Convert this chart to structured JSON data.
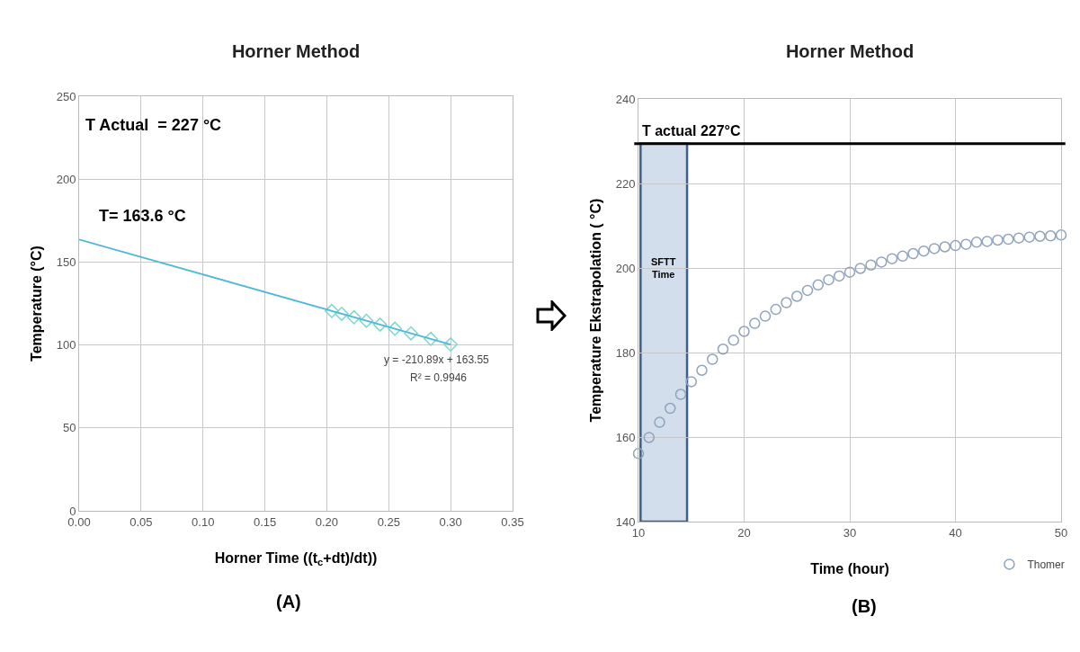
{
  "chart_data": [
    {
      "type": "scatter",
      "title": "Horner Method",
      "xlabel": "Horner Time ((t$_{c}$+dt)/dt))",
      "ylabel": "Temperature (°C)",
      "xlim": [
        0,
        0.35
      ],
      "xticks": [
        {
          "value": 0,
          "label": "0.00"
        },
        {
          "value": 0.05,
          "label": "0.05"
        },
        {
          "value": 0.1,
          "label": "0.10"
        },
        {
          "value": 0.15,
          "label": "0.15"
        },
        {
          "value": 0.2,
          "label": "0.20"
        },
        {
          "value": 0.25,
          "label": "0.25"
        },
        {
          "value": 0.3,
          "label": "0.30"
        },
        {
          "value": 0.35,
          "label": "0.35"
        }
      ],
      "ylim": [
        0,
        250
      ],
      "yticks": [
        0,
        50,
        100,
        150,
        200,
        250
      ],
      "grid": true,
      "legend": false,
      "marker": "diamond",
      "series": [
        {
          "color": "#7fd6d0",
          "x": [
            0.204,
            0.212,
            0.222,
            0.232,
            0.243,
            0.255,
            0.268,
            0.284,
            0.3
          ],
          "values": [
            120.5,
            118.8,
            116.7,
            114.6,
            112.3,
            109.8,
            107.0,
            103.7,
            100.3
          ]
        },
        {
          "type": "line",
          "color": "#4fb8d8",
          "marker": "none",
          "x": [
            0,
            0.3
          ],
          "values": [
            163.6,
            100.3
          ]
        }
      ],
      "annotations": [
        "T Actual  = 227 °C",
        {
          "text": "T= 163.6 °C",
          "x": 0,
          "y": 163.6
        },
        "y = -210.89x + 163.55",
        "R² = 0.9946",
        "(A)"
      ]
    },
    {
      "type": "scatter",
      "title": "Horner Method",
      "xlabel": "Time (hour)",
      "ylabel": "Temperature Ekstrapolation ( °C)",
      "xlim": [
        10,
        50
      ],
      "xticks": [
        10,
        20,
        30,
        40,
        50
      ],
      "ylim": [
        140,
        240
      ],
      "yticks": [
        140,
        160,
        180,
        200,
        220,
        240
      ],
      "grid": true,
      "legend": "bottom right",
      "marker": "circle",
      "series": [
        {
          "name": "Thomer",
          "color": "#8fa3bd",
          "x": [
            10,
            11,
            12,
            13,
            14,
            15,
            16,
            17,
            18,
            19,
            20,
            21,
            22,
            23,
            24,
            25,
            26,
            27,
            28,
            29,
            30,
            31,
            32,
            33,
            34,
            35,
            36,
            37,
            38,
            39,
            40,
            41,
            42,
            43,
            44,
            45,
            46,
            47,
            48,
            49,
            50
          ],
          "values": [
            156.1,
            159.9,
            163.5,
            166.8,
            170.1,
            173.1,
            175.8,
            178.4,
            180.8,
            182.9,
            185.0,
            186.9,
            188.6,
            190.2,
            191.8,
            193.3,
            194.7,
            196.0,
            197.2,
            198.1,
            199.0,
            199.9,
            200.7,
            201.4,
            202.2,
            202.8,
            203.4,
            204.0,
            204.6,
            205.0,
            205.3,
            205.6,
            206.1,
            206.3,
            206.6,
            206.8,
            207.1,
            207.3,
            207.5,
            207.6,
            207.8
          ]
        }
      ],
      "ref_lines": [
        {
          "axis": "y",
          "value": 229.4,
          "label": "T actual 227°C",
          "color": "#000000"
        }
      ],
      "bands": [
        {
          "axis": "x",
          "from": 10.2,
          "to": 14.6,
          "label": "SFTT Time",
          "color": "#d3deec"
        }
      ],
      "annotations": [
        "(B)"
      ]
    }
  ]
}
